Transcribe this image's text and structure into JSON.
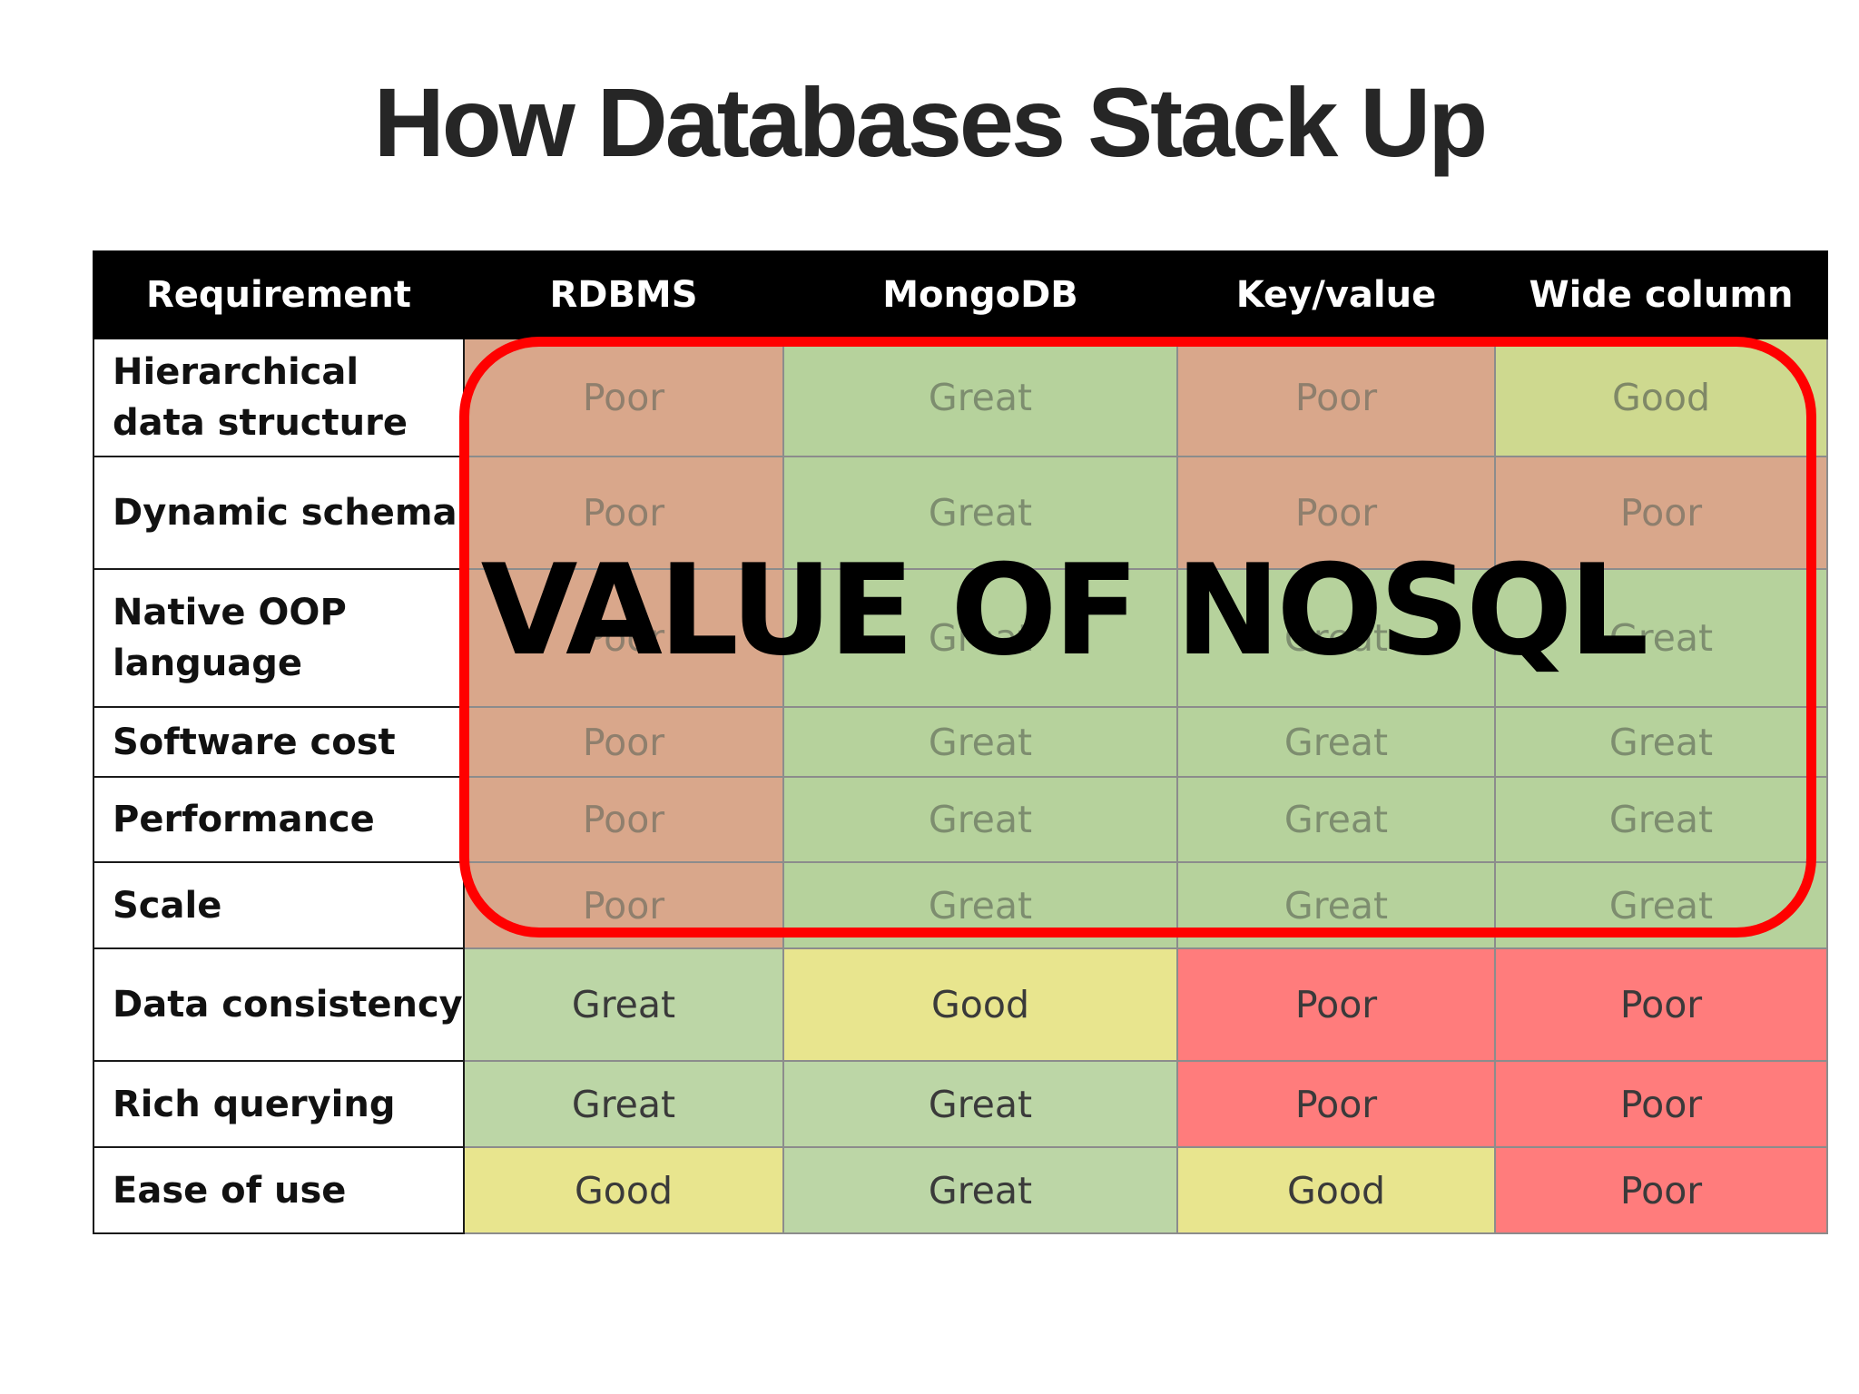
{
  "slide": {
    "title": "How Databases Stack Up",
    "overlay_text": "VALUE OF NOSQL",
    "highlight_color": "#ff0000"
  },
  "table": {
    "headers": [
      "Requirement",
      "RDBMS",
      "MongoDB",
      "Key/value",
      "Wide column"
    ],
    "rows": [
      {
        "label": "Hierarchical data structure",
        "values": [
          "Poor",
          "Great",
          "Poor",
          "Good"
        ]
      },
      {
        "label": "Dynamic schema",
        "values": [
          "Poor",
          "Great",
          "Poor",
          "Poor"
        ]
      },
      {
        "label": "Native OOP language",
        "values": [
          "Poor",
          "Great",
          "Great",
          "Great"
        ]
      },
      {
        "label": "Software cost",
        "values": [
          "Poor",
          "Great",
          "Great",
          "Great"
        ]
      },
      {
        "label": "Performance",
        "values": [
          "Poor",
          "Great",
          "Great",
          "Great"
        ]
      },
      {
        "label": "Scale",
        "values": [
          "Poor",
          "Great",
          "Great",
          "Great"
        ]
      },
      {
        "label": "Data consistency",
        "values": [
          "Great",
          "Good",
          "Poor",
          "Poor"
        ]
      },
      {
        "label": "Rich querying",
        "values": [
          "Great",
          "Great",
          "Poor",
          "Poor"
        ]
      },
      {
        "label": "Ease of use",
        "values": [
          "Good",
          "Great",
          "Good",
          "Poor"
        ]
      }
    ]
  },
  "rating_colors": {
    "Poor": "#ff7c7c",
    "Good": "#e8e58e",
    "Great": "#bcd6a6"
  }
}
